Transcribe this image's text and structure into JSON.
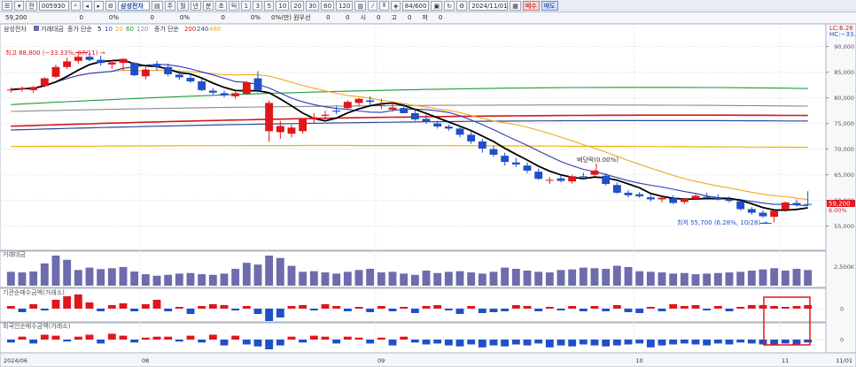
{
  "toolbar": {
    "code": "005930",
    "name": "삼성전자",
    "period_buttons": [
      "주",
      "월",
      "년",
      "분",
      "초",
      "틱"
    ],
    "minute_buttons": [
      "1",
      "3",
      "5",
      "10",
      "20",
      "30",
      "60",
      "120"
    ],
    "count": "84/600",
    "date": "2024/11/01",
    "buy": "매수",
    "sell": "매도",
    "left_mode": "전",
    "right_info": "0%(만) 원우선"
  },
  "info": {
    "price": "59,200",
    "cells": [
      "0",
      "0%",
      "0",
      "0%",
      "0",
      "0%",
      "0",
      "0",
      "시",
      "0",
      "고",
      "0",
      "저",
      "0"
    ]
  },
  "legend": {
    "name": "삼성전자",
    "volume_label": "거래대금",
    "ma_label": "종가 단순",
    "ma_periods": [
      "5",
      "10",
      "20",
      "60",
      "120"
    ],
    "ma2_label": "종가 단순",
    "ma2_periods": [
      "200",
      "240",
      "480"
    ]
  },
  "annotations": {
    "high": "최고 88,800 (−33.33%, 07/11) →",
    "low": "최저 55,700 (6.28%, 10/28) →",
    "ex_dividend": "배당락(0.00%)",
    "lc": "LC:6.28",
    "hc": "HC:−33.33",
    "current_price": "59,200",
    "current_pct": "6.00%"
  },
  "panels": {
    "volume": "거래대금",
    "inst": "기관순매수금액(거래소)",
    "foreign": "외국인순매수금액(거래소)"
  },
  "colors": {
    "up": "#e0161b",
    "down": "#1f4fc9",
    "ma5": "#000000",
    "ma10": "#2a3bb8",
    "ma20": "#f2a71b",
    "ma60": "#1a9a3a",
    "ma120": "#8a8a8a",
    "ma200": "#d0191c",
    "ma240": "#2c4a9a",
    "ma480": "#e8b600",
    "volume": "#6c6cae",
    "highlight": "#e3181c"
  },
  "chart_data": {
    "type": "candlestick",
    "title": "삼성전자",
    "ylim": [
      52000,
      92000
    ],
    "y_ticks": [
      55000,
      60000,
      65000,
      70000,
      75000,
      80000,
      85000,
      90000
    ],
    "y_tick_labels": [
      "55,000",
      "60,000",
      "65,000",
      "70,000",
      "75,000",
      "80,000",
      "85,000",
      "90,000"
    ],
    "x_tick_labels": [
      "2024/06",
      "08",
      "09",
      "10",
      "11",
      "11/01"
    ],
    "volume_tick_label": "2,500K",
    "zero_label": "0",
    "candles": [
      [
        81500,
        82000,
        81000,
        81600
      ],
      [
        81700,
        82200,
        81200,
        81900
      ],
      [
        81500,
        82300,
        81000,
        82100
      ],
      [
        82300,
        84000,
        82100,
        83800
      ],
      [
        84100,
        86500,
        83800,
        86000
      ],
      [
        86000,
        87800,
        85600,
        87100
      ],
      [
        87200,
        88400,
        86700,
        88000
      ],
      [
        88000,
        88800,
        87100,
        87400
      ],
      [
        87400,
        88200,
        86300,
        86800
      ],
      [
        86500,
        87300,
        85600,
        86900
      ],
      [
        86800,
        87700,
        85300,
        87600
      ],
      [
        86800,
        87000,
        84200,
        84400
      ],
      [
        84200,
        86000,
        83600,
        85500
      ],
      [
        86500,
        87200,
        85300,
        86000
      ],
      [
        86000,
        86700,
        84200,
        84600
      ],
      [
        84500,
        85300,
        83500,
        84000
      ],
      [
        83900,
        84600,
        82900,
        83200
      ],
      [
        83200,
        83700,
        81300,
        81500
      ],
      [
        81400,
        81900,
        80600,
        81000
      ],
      [
        80900,
        81400,
        80100,
        80500
      ],
      [
        80300,
        81200,
        79800,
        80900
      ],
      [
        80800,
        83200,
        80600,
        83000
      ],
      [
        83800,
        85200,
        81000,
        81500
      ],
      [
        73500,
        79500,
        71400,
        79000
      ],
      [
        73300,
        75500,
        72000,
        74500
      ],
      [
        73000,
        74800,
        72300,
        74200
      ],
      [
        73500,
        76000,
        73000,
        75900
      ],
      [
        75800,
        77000,
        75200,
        76200
      ],
      [
        76500,
        77500,
        75800,
        76700
      ],
      [
        77500,
        78500,
        76800,
        77300
      ],
      [
        78000,
        79500,
        77600,
        79200
      ],
      [
        79000,
        80000,
        78300,
        79800
      ],
      [
        79500,
        80300,
        78600,
        79200
      ],
      [
        78500,
        79800,
        77800,
        78600
      ],
      [
        77700,
        79000,
        77300,
        78100
      ],
      [
        78000,
        78800,
        77000,
        77000
      ],
      [
        77000,
        77600,
        75500,
        75800
      ],
      [
        75900,
        76700,
        74900,
        75300
      ],
      [
        75000,
        75500,
        74000,
        74400
      ],
      [
        74400,
        74800,
        73600,
        74000
      ],
      [
        74000,
        74500,
        72300,
        72800
      ],
      [
        72800,
        73400,
        71000,
        71500
      ],
      [
        71500,
        72000,
        69300,
        70100
      ],
      [
        70000,
        70600,
        68500,
        68900
      ],
      [
        68700,
        69300,
        66800,
        67500
      ],
      [
        67400,
        68300,
        66500,
        67000
      ],
      [
        66800,
        67400,
        65300,
        65800
      ],
      [
        65600,
        66200,
        64000,
        64200
      ],
      [
        64000,
        64500,
        63200,
        64000
      ],
      [
        64300,
        64800,
        63500,
        63800
      ],
      [
        63700,
        65000,
        63300,
        64700
      ],
      [
        64700,
        65400,
        64000,
        64500
      ],
      [
        65000,
        66000,
        64700,
        65800
      ],
      [
        64800,
        65300,
        62900,
        63200
      ],
      [
        63000,
        63500,
        61300,
        61500
      ],
      [
        61500,
        62000,
        60600,
        61000
      ],
      [
        61200,
        61600,
        60500,
        60800
      ],
      [
        60600,
        61100,
        59800,
        60200
      ],
      [
        60200,
        60800,
        59600,
        60500
      ],
      [
        60400,
        61000,
        59300,
        59500
      ],
      [
        59700,
        60500,
        59300,
        60300
      ],
      [
        60300,
        61200,
        60100,
        60900
      ],
      [
        60700,
        61500,
        60300,
        60600
      ],
      [
        60500,
        61200,
        60000,
        60300
      ],
      [
        60200,
        60700,
        59600,
        59900
      ],
      [
        59800,
        60300,
        58000,
        58300
      ],
      [
        58300,
        58700,
        57200,
        57600
      ],
      [
        57600,
        58100,
        56600,
        56900
      ],
      [
        56800,
        58100,
        55700,
        58000
      ],
      [
        58200,
        59800,
        57800,
        59600
      ],
      [
        59500,
        60200,
        58800,
        59100
      ],
      [
        59300,
        61800,
        58900,
        59200
      ]
    ],
    "volume_values": [
      46,
      44,
      47,
      74,
      100,
      86,
      52,
      60,
      55,
      58,
      62,
      47,
      38,
      33,
      36,
      40,
      42,
      38,
      36,
      40,
      56,
      76,
      70,
      100,
      92,
      66,
      46,
      48,
      44,
      40,
      46,
      52,
      56,
      44,
      46,
      40,
      36,
      50,
      42,
      46,
      48,
      44,
      40,
      46,
      60,
      56,
      50,
      46,
      44,
      52,
      54,
      60,
      58,
      56,
      66,
      62,
      48,
      46,
      44,
      40,
      42,
      38,
      40,
      42,
      44,
      46,
      50,
      54,
      58,
      50,
      56,
      52
    ],
    "institution_net": [
      3,
      -4,
      5,
      -2,
      10,
      14,
      16,
      7,
      -3,
      4,
      6,
      -3,
      5,
      10,
      -3,
      2,
      -6,
      3,
      5,
      4,
      -2,
      3,
      -6,
      -14,
      -10,
      3,
      4,
      -2,
      5,
      3,
      -3,
      2,
      -4,
      3,
      -3,
      2,
      -5,
      3,
      4,
      -2,
      -6,
      3,
      -5,
      -4,
      -3,
      4,
      3,
      -3,
      2,
      -2,
      3,
      -3,
      3,
      -3,
      4,
      -4,
      -5,
      2,
      -3,
      5,
      3,
      4,
      -2,
      3,
      -3,
      2,
      4,
      4,
      3,
      2,
      3,
      4
    ],
    "foreign_net": [
      -3,
      3,
      -4,
      5,
      4,
      -2,
      3,
      5,
      -4,
      6,
      4,
      -3,
      2,
      3,
      3,
      -2,
      4,
      -3,
      5,
      -6,
      4,
      -5,
      -7,
      -10,
      -6,
      3,
      -3,
      4,
      3,
      -4,
      3,
      2,
      -4,
      2,
      -6,
      3,
      -3,
      -5,
      -4,
      -6,
      -7,
      -5,
      -8,
      -6,
      -7,
      -5,
      -6,
      -4,
      -8,
      -6,
      -7,
      -5,
      -6,
      -7,
      -6,
      -5,
      -4,
      -8,
      -6,
      -5,
      -4,
      -5,
      -6,
      -4,
      -5,
      -3,
      -4,
      -5,
      -6,
      -4,
      -5,
      -3
    ]
  }
}
